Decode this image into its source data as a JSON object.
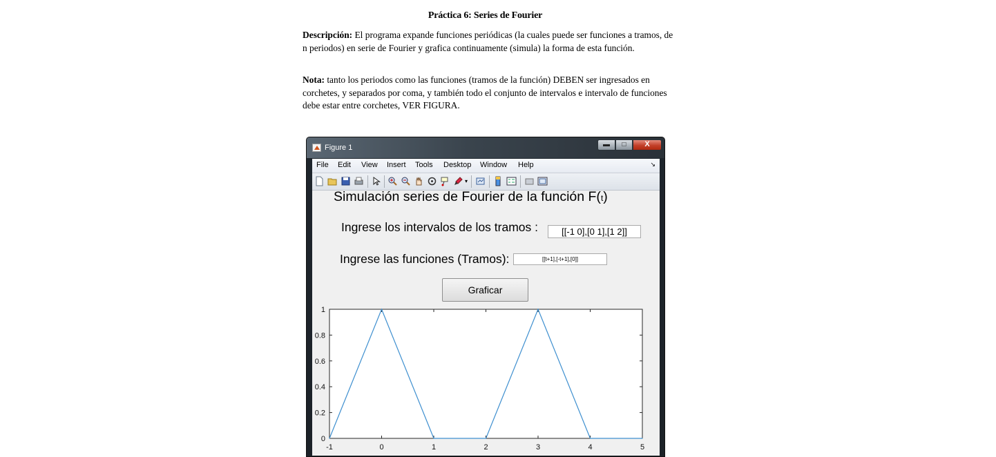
{
  "document": {
    "title": "Práctica 6: Series de Fourier",
    "description_label": "Descripción:",
    "description_text": " El programa expande funciones periódicas (la cuales puede ser funciones a tramos, de n periodos) en serie de Fourier y grafica continuamente (simula) la forma de esta función.",
    "note_label": "Nota:",
    "note_text": " tanto los periodos como las funciones (tramos de la función) DEBEN ser ingresados en corchetes, y separados por coma, y también todo el conjunto de intervalos e intervalo de funciones debe estar entre corchetes, VER FIGURA."
  },
  "window": {
    "title": "Figure 1",
    "minimize": "▬",
    "maximize": "□",
    "close": "X"
  },
  "menu": [
    "File",
    "Edit",
    "View",
    "Insert",
    "Tools",
    "Desktop",
    "Window",
    "Help"
  ],
  "menu_dock_icon": "dock-arrow-icon",
  "toolbar_icons": [
    "new-figure-icon",
    "open-file-icon",
    "save-icon",
    "print-icon",
    "pointer-icon",
    "zoom-in-icon",
    "zoom-out-icon",
    "pan-icon",
    "rotate-icon",
    "data-cursor-icon",
    "brush-icon",
    "link-icon",
    "colorbar-icon",
    "legend-icon",
    "hide-plot-tools-icon",
    "show-plot-tools-icon"
  ],
  "gui": {
    "title_main": "Simulación series de Fourier de la función F(",
    "title_var": "t",
    "title_close": ")",
    "intervals_label": "Ingrese los intervalos de los tramos :",
    "intervals_value": "[[-1 0],[0 1],[1 2]]",
    "functions_label": "Ingrese las funciones (Tramos):",
    "functions_value": "[[t+1],[-t+1],[0]]",
    "plot_button": "Graficar"
  },
  "colors": {
    "line": "#3e8fcf",
    "axes_bg": "#ffffff",
    "figure_bg": "#f0f0f0"
  },
  "chart_data": {
    "type": "line",
    "x": [
      -1,
      0,
      1,
      2,
      3,
      4,
      5
    ],
    "series": [
      {
        "values": [
          0,
          1,
          0,
          0,
          1,
          0,
          0
        ]
      }
    ],
    "xlim": [
      -1,
      5
    ],
    "ylim": [
      0,
      1
    ],
    "xticks": [
      "-1",
      "0",
      "1",
      "2",
      "3",
      "4",
      "5"
    ],
    "yticks": [
      "0",
      "0.2",
      "0.4",
      "0.6",
      "0.8",
      "1"
    ],
    "grid": false
  }
}
